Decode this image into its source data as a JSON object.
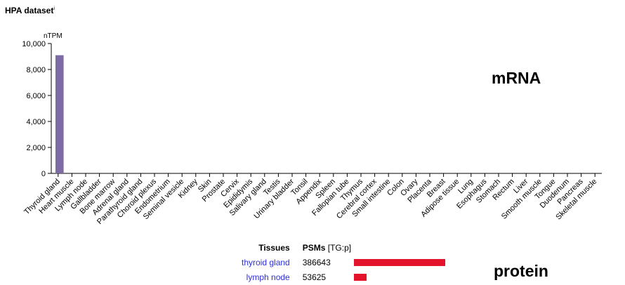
{
  "header": {
    "title": "HPA dataset",
    "info_mark": "i"
  },
  "chart_data": {
    "type": "bar",
    "ylabel": "nTPM",
    "ylim": [
      0,
      10000
    ],
    "yticks": [
      "0",
      "2,000",
      "4,000",
      "6,000",
      "8,000",
      "10,000"
    ],
    "bar_color": "#7d6ba3",
    "categories": [
      "Thyroid gland",
      "Heart muscle",
      "Lymph node",
      "Gallbladder",
      "Bone marrow",
      "Adrenal gland",
      "Parathyroid gland",
      "Choroid plexus",
      "Endometrium",
      "Seminal vesicle",
      "Kidney",
      "Skin",
      "Prostate",
      "Cervix",
      "Epididymis",
      "Salivary gland",
      "Testis",
      "Urinary bladder",
      "Tonsil",
      "Appendix",
      "Spleen",
      "Fallopian tube",
      "Thymus",
      "Cerebral cortex",
      "Small intestine",
      "Colon",
      "Ovary",
      "Placenta",
      "Breast",
      "Adipose tissue",
      "Lung",
      "Esophagus",
      "Stomach",
      "Rectum",
      "Liver",
      "Smooth muscle",
      "Tongue",
      "Duodenum",
      "Pancreas",
      "Skeletal muscle"
    ],
    "values": [
      9100,
      0,
      0,
      0,
      0,
      0,
      0,
      0,
      0,
      0,
      0,
      0,
      0,
      0,
      0,
      0,
      0,
      0,
      0,
      0,
      0,
      0,
      0,
      0,
      0,
      0,
      0,
      0,
      0,
      0,
      0,
      0,
      0,
      0,
      0,
      0,
      0,
      0,
      0,
      0
    ]
  },
  "annotations": {
    "mrna": "mRNA",
    "protein": "protein"
  },
  "protein": {
    "col_tissues": "Tissues",
    "col_psms": "PSMs",
    "col_psms_unit": "[TG:p]",
    "bar_color": "#e2132b",
    "max_psm": 386643,
    "rows": [
      {
        "tissue": "thyroid gland",
        "psm": 386643,
        "psm_text": "386643"
      },
      {
        "tissue": "lymph node",
        "psm": 53625,
        "psm_text": "53625"
      }
    ]
  }
}
